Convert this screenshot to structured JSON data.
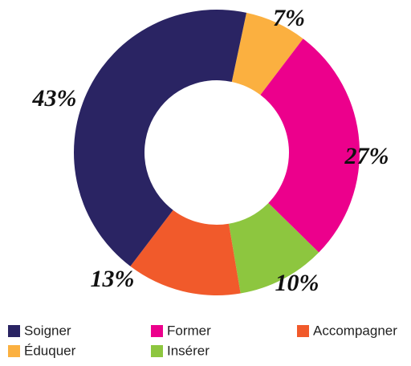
{
  "chart_data": {
    "type": "donut",
    "categories": [
      "Soigner",
      "Former",
      "Accompagner",
      "Éduquer",
      "Insérer"
    ],
    "values": [
      43,
      27,
      13,
      7,
      10
    ],
    "value_labels": [
      "43%",
      "27%",
      "13%",
      "7%",
      "10%"
    ],
    "colors": [
      "#2a2463",
      "#ec008c",
      "#f15a2b",
      "#fbb040",
      "#8dc63f"
    ],
    "legend": "bottom"
  }
}
